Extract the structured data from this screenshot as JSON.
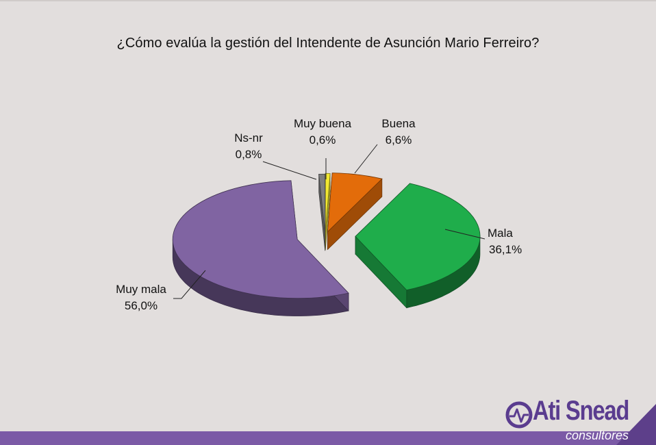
{
  "chart_data": {
    "type": "pie",
    "title": "¿Cómo evalúa la gestión del Intendente de Asunción Mario Ferreiro?",
    "slices": [
      {
        "name": "Muy buena",
        "value": 0.6,
        "label": "0,6%",
        "color": "#f2e832"
      },
      {
        "name": "Buena",
        "value": 6.6,
        "label": "6,6%",
        "color": "#e36c0a"
      },
      {
        "name": "Mala",
        "value": 36.1,
        "label": "36,1%",
        "color": "#1fad4b"
      },
      {
        "name": "Muy mala",
        "value": 56.0,
        "label": "56,0%",
        "color": "#8064a2"
      },
      {
        "name": "Ns-nr",
        "value": 0.8,
        "label": "0,8%",
        "color": "#7f7f7f"
      }
    ],
    "style": "3d-exploded",
    "legend": "none"
  },
  "branding": {
    "name": "Ati Snead",
    "subtitle": "consultores",
    "color": "#5a3c8f"
  }
}
